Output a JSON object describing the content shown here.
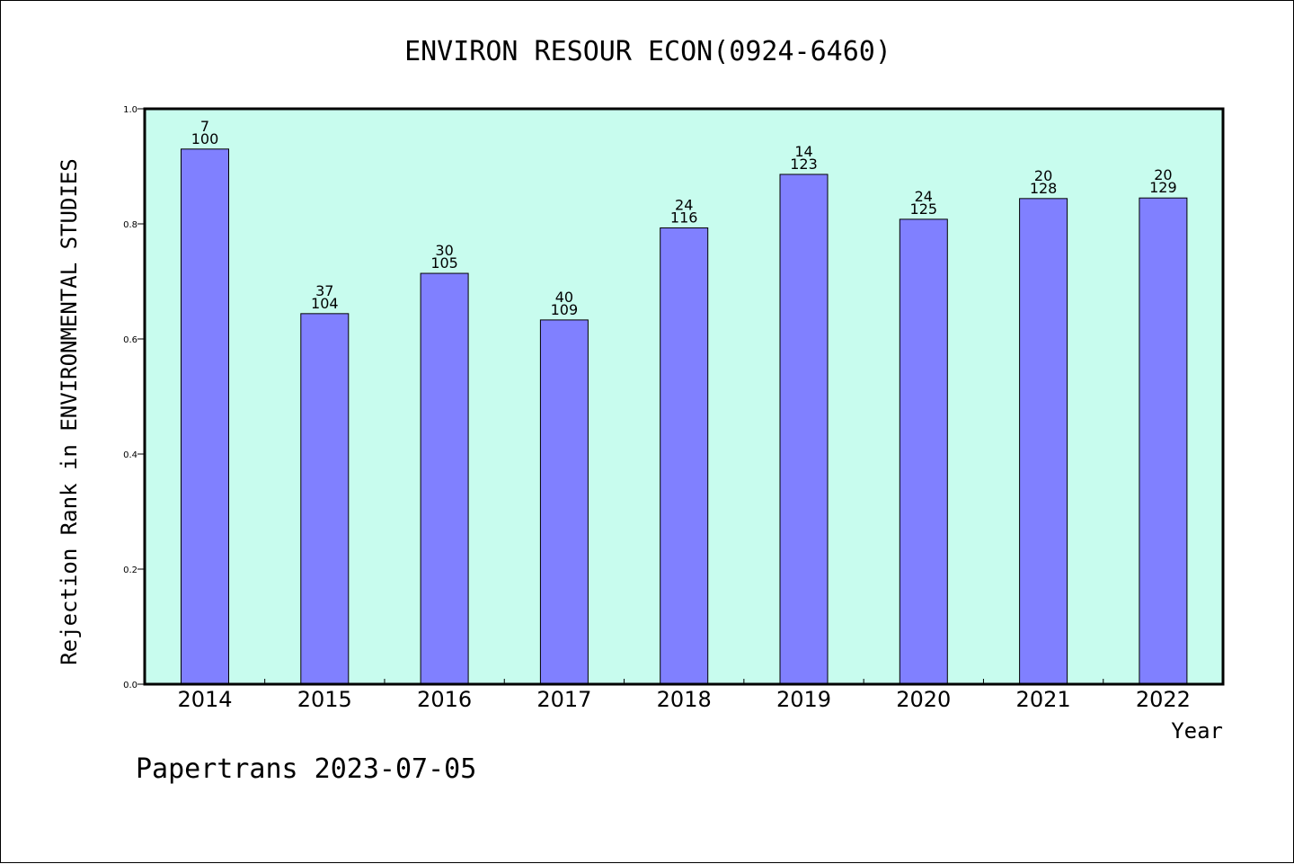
{
  "chart_data": {
    "type": "bar",
    "title": "ENVIRON RESOUR ECON(0924-6460)",
    "xlabel": "Year",
    "ylabel": "Rejection Rank in ENVIRONMENTAL STUDIES",
    "ylim": [
      0,
      1.0
    ],
    "yticks": [
      "0.0",
      "0.2",
      "0.4",
      "0.6",
      "0.8",
      "1.0"
    ],
    "categories": [
      "2014",
      "2015",
      "2016",
      "2017",
      "2018",
      "2019",
      "2020",
      "2021",
      "2022"
    ],
    "values": [
      0.93,
      0.644,
      0.714,
      0.633,
      0.793,
      0.886,
      0.808,
      0.844,
      0.845
    ],
    "rank_labels": [
      "7",
      "37",
      "30",
      "40",
      "24",
      "14",
      "24",
      "20",
      "20"
    ],
    "total_labels": [
      "100",
      "104",
      "105",
      "109",
      "116",
      "123",
      "125",
      "128",
      "129"
    ],
    "grid": false,
    "colors": {
      "plot_background": "#c8fcee",
      "bar_fill": "#8080ff",
      "bar_stroke": "#000000"
    }
  },
  "footer": "Papertrans 2023-07-05"
}
